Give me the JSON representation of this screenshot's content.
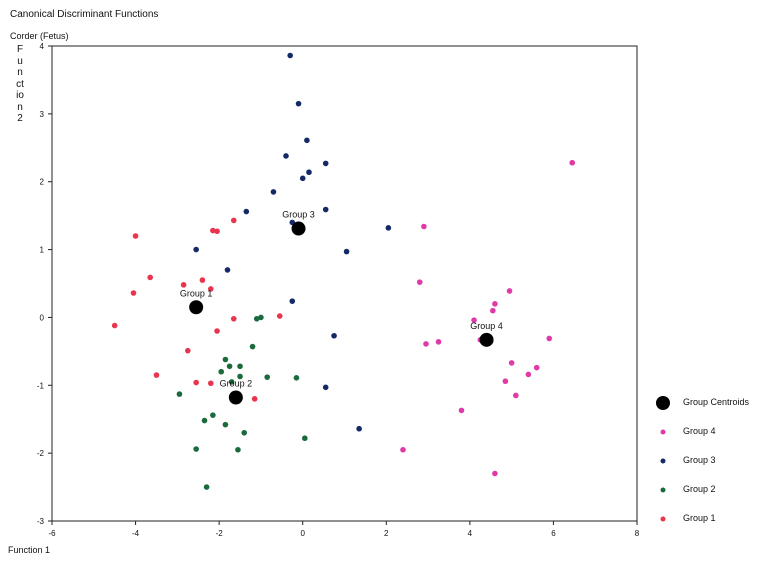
{
  "chart_data": {
    "type": "scatter",
    "title": "Canonical Discriminant Functions",
    "subtitle": "Corder (Fetus)",
    "xlabel": "Function 1",
    "ylabel": "Function 2",
    "xlim": [
      -6,
      8
    ],
    "ylim": [
      -3,
      4
    ],
    "xticks": [
      "-6",
      "-4",
      "-2",
      "0",
      "2",
      "4",
      "6",
      "8"
    ],
    "yticks": [
      "-3",
      "-2",
      "-1",
      "0",
      "1",
      "2",
      "3",
      "4"
    ],
    "grid": false,
    "legend_position": "bottom-right",
    "series": [
      {
        "name": "Group 1",
        "color": "#e8344c",
        "points": [
          [
            -4.0,
            1.2
          ],
          [
            -4.5,
            -0.12
          ],
          [
            -4.05,
            0.36
          ],
          [
            -3.65,
            0.59
          ],
          [
            -3.5,
            -0.85
          ],
          [
            -2.85,
            0.48
          ],
          [
            -2.75,
            -0.49
          ],
          [
            -2.55,
            -0.96
          ],
          [
            -2.4,
            0.55
          ],
          [
            -2.2,
            0.42
          ],
          [
            -2.15,
            1.28
          ],
          [
            -2.05,
            1.27
          ],
          [
            -2.05,
            -0.2
          ],
          [
            -1.65,
            1.43
          ],
          [
            -1.65,
            -0.02
          ],
          [
            -2.2,
            -0.97
          ],
          [
            -1.15,
            -1.2
          ],
          [
            -0.55,
            0.02
          ]
        ]
      },
      {
        "name": "Group 2",
        "color": "#1a6b3c",
        "points": [
          [
            -2.95,
            -1.13
          ],
          [
            -2.55,
            -1.94
          ],
          [
            -2.3,
            -2.5
          ],
          [
            -2.35,
            -1.52
          ],
          [
            -2.15,
            -1.44
          ],
          [
            -1.95,
            -0.8
          ],
          [
            -1.85,
            -0.62
          ],
          [
            -1.85,
            -1.58
          ],
          [
            -1.75,
            -0.72
          ],
          [
            -1.7,
            -0.95
          ],
          [
            -1.5,
            -0.72
          ],
          [
            -1.5,
            -0.87
          ],
          [
            -1.55,
            -1.95
          ],
          [
            -1.4,
            -1.7
          ],
          [
            -1.2,
            -0.43
          ],
          [
            -1.1,
            -0.02
          ],
          [
            -1.0,
            0.0
          ],
          [
            -0.85,
            -0.88
          ],
          [
            -0.15,
            -0.89
          ],
          [
            0.05,
            -1.78
          ]
        ]
      },
      {
        "name": "Group 3",
        "color": "#142a66",
        "points": [
          [
            -0.3,
            3.86
          ],
          [
            -0.1,
            3.15
          ],
          [
            0.1,
            2.61
          ],
          [
            -0.4,
            2.38
          ],
          [
            0.55,
            2.27
          ],
          [
            0.15,
            2.14
          ],
          [
            0.0,
            2.05
          ],
          [
            -0.7,
            1.85
          ],
          [
            0.55,
            1.59
          ],
          [
            -1.35,
            1.56
          ],
          [
            -0.25,
            1.4
          ],
          [
            2.05,
            1.32
          ],
          [
            -2.55,
            1.0
          ],
          [
            1.05,
            0.97
          ],
          [
            -1.8,
            0.7
          ],
          [
            -0.25,
            0.24
          ],
          [
            0.75,
            -0.27
          ],
          [
            0.55,
            -1.03
          ],
          [
            1.35,
            -1.64
          ]
        ]
      },
      {
        "name": "Group 4",
        "color": "#e03aa8",
        "points": [
          [
            6.45,
            2.28
          ],
          [
            2.9,
            1.34
          ],
          [
            2.8,
            0.52
          ],
          [
            4.95,
            0.39
          ],
          [
            4.6,
            0.2
          ],
          [
            4.55,
            0.1
          ],
          [
            4.1,
            -0.04
          ],
          [
            2.95,
            -0.39
          ],
          [
            3.25,
            -0.36
          ],
          [
            4.25,
            -0.33
          ],
          [
            5.9,
            -0.31
          ],
          [
            5.0,
            -0.67
          ],
          [
            5.6,
            -0.74
          ],
          [
            5.4,
            -0.84
          ],
          [
            4.85,
            -0.94
          ],
          [
            5.1,
            -1.15
          ],
          [
            3.8,
            -1.37
          ],
          [
            2.4,
            -1.95
          ],
          [
            4.6,
            -2.3
          ]
        ]
      },
      {
        "name": "Group Centroids",
        "color": "#000000",
        "points": [
          [
            -2.55,
            0.15
          ],
          [
            -1.6,
            -1.18
          ],
          [
            -0.1,
            1.31
          ],
          [
            4.4,
            -0.33
          ]
        ]
      }
    ],
    "annotations": [
      {
        "text": "Group 1",
        "x": -2.55,
        "y": 0.15
      },
      {
        "text": "Group 2",
        "x": -1.6,
        "y": -1.18
      },
      {
        "text": "Group 3",
        "x": -0.1,
        "y": 1.31
      },
      {
        "text": "Group 4",
        "x": 4.4,
        "y": -0.33
      }
    ]
  },
  "legend": [
    {
      "label": "Group Centroids",
      "color": "#000000",
      "kind": "centroid"
    },
    {
      "label": "Group 4",
      "color": "#e03aa8",
      "kind": "point"
    },
    {
      "label": "Group 3",
      "color": "#142a66",
      "kind": "point"
    },
    {
      "label": "Group 2",
      "color": "#1a6b3c",
      "kind": "point"
    },
    {
      "label": "Group 1",
      "color": "#e8344c",
      "kind": "point"
    }
  ]
}
